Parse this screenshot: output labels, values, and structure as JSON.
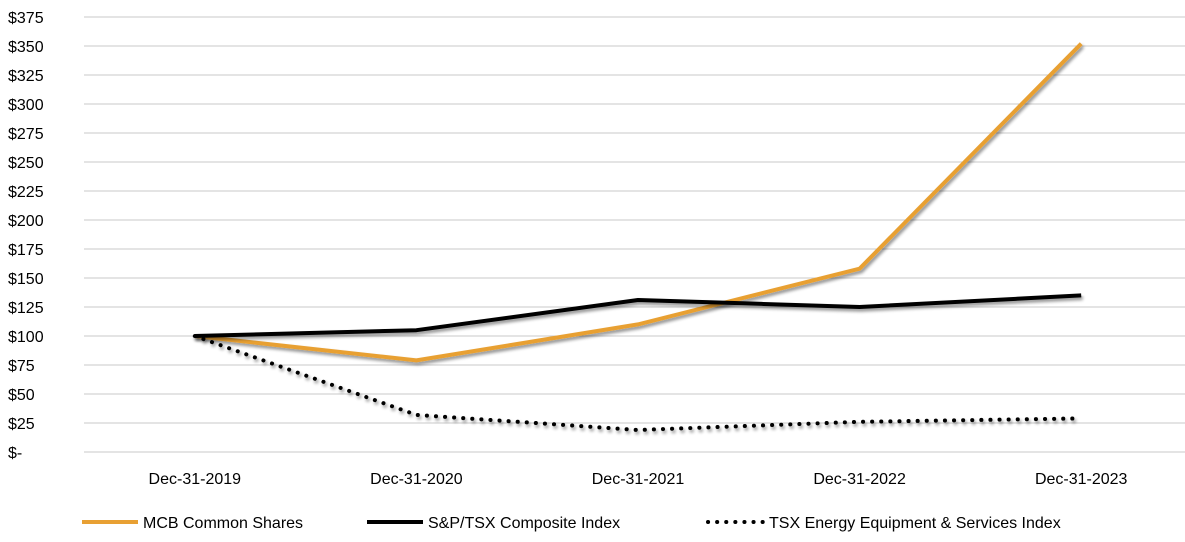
{
  "chart_data": {
    "type": "line",
    "categories": [
      "Dec-31-2019",
      "Dec-31-2020",
      "Dec-31-2021",
      "Dec-31-2022",
      "Dec-31-2023"
    ],
    "y_tick_labels": [
      "$-",
      "$25",
      "$50",
      "$75",
      "$100",
      "$125",
      "$150",
      "$175",
      "$200",
      "$225",
      "$250",
      "$275",
      "$300",
      "$325",
      "$350",
      "$375"
    ],
    "ylim": [
      0,
      375
    ],
    "grid": true,
    "legend_position": "bottom",
    "series": [
      {
        "name": "MCB Common Shares",
        "values": [
          100,
          79,
          110,
          158,
          352
        ],
        "color": "#E8A033",
        "style": "solid"
      },
      {
        "name": "S&P/TSX Composite Index",
        "values": [
          100,
          105,
          131,
          125,
          135
        ],
        "color": "#000000",
        "style": "solid"
      },
      {
        "name": "TSX Energy Equipment & Services Index",
        "values": [
          100,
          32,
          19,
          26,
          29
        ],
        "color": "#000000",
        "style": "dotted"
      }
    ]
  }
}
